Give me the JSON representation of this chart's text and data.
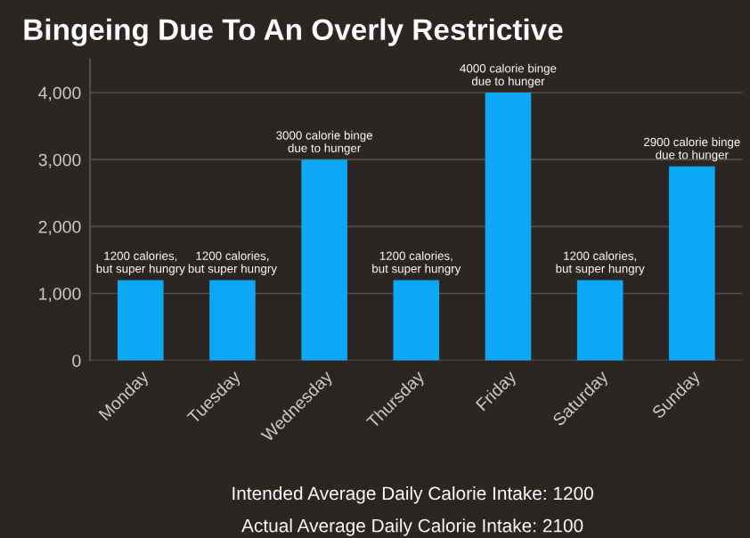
{
  "chart_data": {
    "type": "bar",
    "title": "Bingeing Due To An Overly Restrictive",
    "categories": [
      "Monday",
      "Tuesday",
      "Wednesday",
      "Thursday",
      "Friday",
      "Saturday",
      "Sunday"
    ],
    "values": [
      1200,
      1200,
      3000,
      1200,
      4000,
      1200,
      2900
    ],
    "color": "#0aa8f5",
    "value_labels": [
      "1200 calories,\nbut super hungry",
      "1200 calories,\nbut super hungry",
      "3000 calorie binge\ndue to hunger",
      "1200 calories,\nbut super hungry",
      "4000 calorie binge\ndue to hunger",
      "1200 calories,\nbut super hungry",
      "2900 calorie binge\ndue to hunger"
    ],
    "ylim": [
      0,
      4500
    ],
    "yticks": [
      0,
      {
        "value": 1000,
        "label": "1,000"
      },
      {
        "value": 2000,
        "label": "2,000"
      },
      {
        "value": 3000,
        "label": "3,000"
      },
      {
        "value": 4000,
        "label": "4,000"
      }
    ],
    "grid": "y",
    "annotations": [
      "Intended Average Daily Calorie Intake: 1200",
      "Actual Average Daily Calorie Intake: 2100"
    ]
  }
}
